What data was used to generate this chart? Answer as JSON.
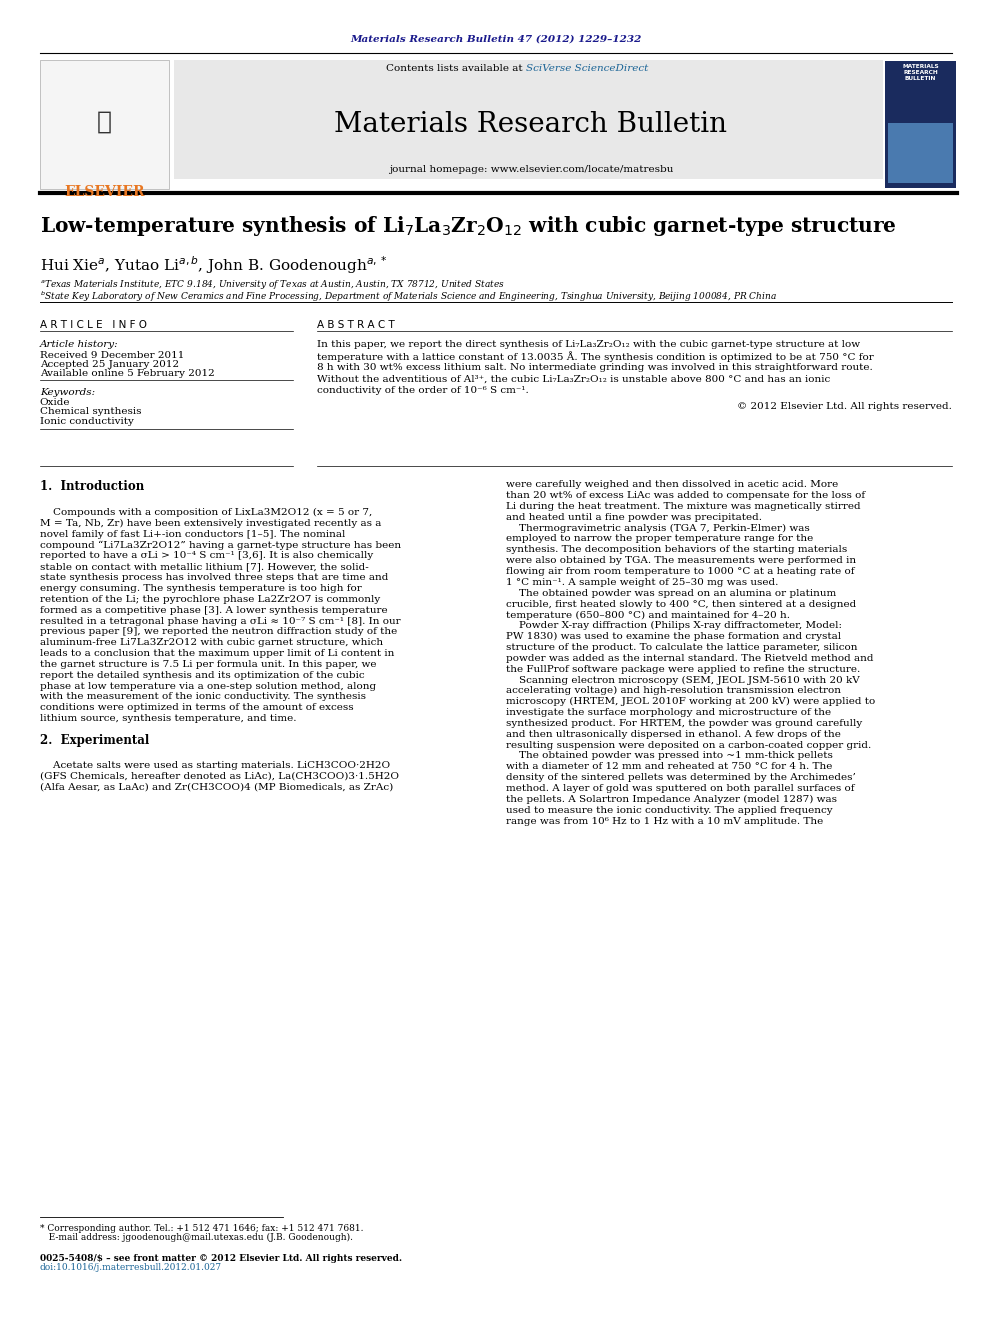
{
  "page_width": 9.92,
  "page_height": 13.23,
  "dpi": 100,
  "background_color": "#ffffff",
  "header_journal_ref": "Materials Research Bulletin 47 (2012) 1229–1232",
  "header_journal_ref_color": "#1a1a8c",
  "header_journal_ref_fontsize": 7.5,
  "banner_bg_color": "#e8e8e8",
  "elsevier_logo_text": "ELSEVIER",
  "elsevier_logo_color": "#e87722",
  "elsevier_logo_fontsize": 10,
  "sciverse_color": "#1a6496",
  "journal_title": "Materials Research Bulletin",
  "journal_title_fontsize": 20,
  "journal_homepage": "journal homepage: www.elsevier.com/locate/matresbu",
  "journal_homepage_fontsize": 7.5,
  "article_title": "Low-temperature synthesis of Li$_7$La$_3$Zr$_2$O$_{12}$ with cubic garnet-type structure",
  "article_title_fontsize": 14.5,
  "authors": "Hui Xie$^a$, Yutao Li$^{a,b}$, John B. Goodenough$^{a,*}$",
  "authors_fontsize": 11,
  "affil_a": "$^a$Texas Materials Institute, ETC 9.184, University of Texas at Austin, Austin, TX 78712, United States",
  "affil_b": "$^b$State Key Laboratory of New Ceramics and Fine Processing, Department of Materials Science and Engineering, Tsinghua University, Beijing 100084, PR China",
  "affil_fontsize": 6.5,
  "article_info_header": "A R T I C L E   I N F O",
  "abstract_header": "A B S T R A C T",
  "section_header_fontsize": 7.5,
  "article_history_label": "Article history:",
  "received": "Received 9 December 2011",
  "accepted": "Accepted 25 January 2012",
  "available": "Available online 5 February 2012",
  "history_fontsize": 7.5,
  "keywords_label": "Keywords:",
  "keyword1": "Oxide",
  "keyword2": "Chemical synthesis",
  "keyword3": "Ionic conductivity",
  "keywords_fontsize": 7.5,
  "abstract_text": "In this paper, we report the direct synthesis of Li₇La₃Zr₂O₁₂ with the cubic garnet-type structure at low\ntemperature with a lattice constant of 13.0035 Å. The synthesis condition is optimized to be at 750 °C for\n8 h with 30 wt% excess lithium salt. No intermediate grinding was involved in this straightforward route.\nWithout the adventitious of Al³⁺, the cubic Li₇La₃Zr₂O₁₂ is unstable above 800 °C and has an ionic\nconductivity of the order of 10⁻⁶ S cm⁻¹.",
  "abstract_fontsize": 7.5,
  "copyright": "© 2012 Elsevier Ltd. All rights reserved.",
  "copyright_fontsize": 7.5,
  "intro_header": "1.  Introduction",
  "intro_header_fontsize": 8.5,
  "intro_text_left": "    Compounds with a composition of LixLa3M2O12 (x = 5 or 7,\nM = Ta, Nb, Zr) have been extensively investigated recently as a\nnovel family of fast Li+-ion conductors [1–5]. The nominal\ncompound “Li7La3Zr2O12” having a garnet-type structure has been\nreported to have a σLi > 10⁻⁴ S cm⁻¹ [3,6]. It is also chemically\nstable on contact with metallic lithium [7]. However, the solid-\nstate synthesis process has involved three steps that are time and\nenergy consuming. The synthesis temperature is too high for\nretention of the Li; the pyrochlore phase La2Zr2O7 is commonly\nformed as a competitive phase [3]. A lower synthesis temperature\nresulted in a tetragonal phase having a σLi ≈ 10⁻⁷ S cm⁻¹ [8]. In our\nprevious paper [9], we reported the neutron diffraction study of the\naluminum-free Li7La3Zr2O12 with cubic garnet structure, which\nleads to a conclusion that the maximum upper limit of Li content in\nthe garnet structure is 7.5 Li per formula unit. In this paper, we\nreport the detailed synthesis and its optimization of the cubic\nphase at low temperature via a one-step solution method, along\nwith the measurement of the ionic conductivity. The synthesis\nconditions were optimized in terms of the amount of excess\nlithium source, synthesis temperature, and time.",
  "body_fontsize": 7.5,
  "experimental_header": "2.  Experimental",
  "experimental_fontsize": 8.5,
  "experimental_text": "    Acetate salts were used as starting materials. LiCH3COO·2H2O\n(GFS Chemicals, hereafter denoted as LiAc), La(CH3COO)3·1.5H2O\n(Alfa Aesar, as LaAc) and Zr(CH3COO)4 (MP Biomedicals, as ZrAc)",
  "right_col_text": "were carefully weighed and then dissolved in acetic acid. More\nthan 20 wt% of excess LiAc was added to compensate for the loss of\nLi during the heat treatment. The mixture was magnetically stirred\nand heated until a fine powder was precipitated.\n    Thermogravimetric analysis (TGA 7, Perkin-Elmer) was\nemployed to narrow the proper temperature range for the\nsynthesis. The decomposition behaviors of the starting materials\nwere also obtained by TGA. The measurements were performed in\nflowing air from room temperature to 1000 °C at a heating rate of\n1 °C min⁻¹. A sample weight of 25–30 mg was used.\n    The obtained powder was spread on an alumina or platinum\ncrucible, first heated slowly to 400 °C, then sintered at a designed\ntemperature (650–800 °C) and maintained for 4–20 h.\n    Powder X-ray diffraction (Philips X-ray diffractometer, Model:\nPW 1830) was used to examine the phase formation and crystal\nstructure of the product. To calculate the lattice parameter, silicon\npowder was added as the internal standard. The Rietveld method and\nthe FullProf software package were applied to refine the structure.\n    Scanning electron microscopy (SEM, JEOL JSM-5610 with 20 kV\naccelerating voltage) and high-resolution transmission electron\nmicroscopy (HRTEM, JEOL 2010F working at 200 kV) were applied to\ninvestigate the surface morphology and microstructure of the\nsynthesized product. For HRTEM, the powder was ground carefully\nand then ultrasonically dispersed in ethanol. A few drops of the\nresulting suspension were deposited on a carbon-coated copper grid.\n    The obtained powder was pressed into ~1 mm-thick pellets\nwith a diameter of 12 mm and reheated at 750 °C for 4 h. The\ndensity of the sintered pellets was determined by the Archimedes’\nmethod. A layer of gold was sputtered on both parallel surfaces of\nthe pellets. A Solartron Impedance Analyzer (model 1287) was\nused to measure the ionic conductivity. The applied frequency\nrange was from 10⁶ Hz to 1 Hz with a 10 mV amplitude. The",
  "footnote_star": "* Corresponding author. Tel.: +1 512 471 1646; fax: +1 512 471 7681.",
  "footnote_email": "   E-mail address: jgoodenough@mail.utexas.edu (J.B. Goodenough).",
  "footnote_issn": "0025-5408/$ – see front matter © 2012 Elsevier Ltd. All rights reserved.",
  "footnote_doi": "doi:10.1016/j.materresbull.2012.01.027",
  "footnote_fontsize": 6.5,
  "footnote_doi_color": "#1a6496"
}
